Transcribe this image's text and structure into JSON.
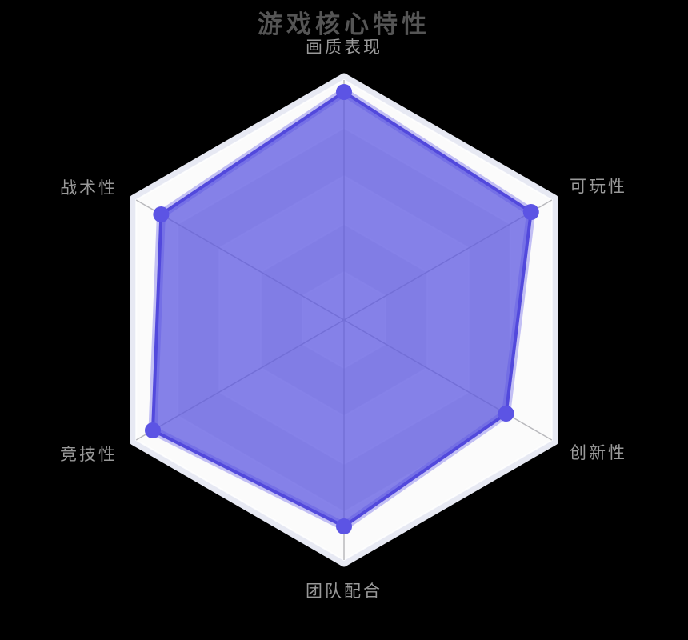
{
  "title": "游戏核心特性",
  "chart_data": {
    "type": "radar",
    "title": "游戏核心特性",
    "max": 100,
    "levels": 5,
    "grid": "hexagon-polygon",
    "legend_position": "none",
    "indicators": [
      {
        "name": "画质表现",
        "max": 100
      },
      {
        "name": "可玩性",
        "max": 100
      },
      {
        "name": "创新性",
        "max": 100
      },
      {
        "name": "团队配合",
        "max": 100
      },
      {
        "name": "竞技性",
        "max": 100
      },
      {
        "name": "战术性",
        "max": 100
      }
    ],
    "series": [
      {
        "values": [
          95,
          90,
          78,
          86,
          92,
          88
        ]
      }
    ],
    "colors": {
      "background": "#000000",
      "title_text": "#555555",
      "axis_label_text": "#999999",
      "band_light": "#fbfbfb",
      "band_dark": "#ececf0",
      "outer_edge": "#e7e9f3",
      "split_line": "rgba(255,255,255,0.8)",
      "axis_line": "#b9b9bd",
      "area_fill": "rgba(88,82,224,0.72)",
      "line": "#5249dc",
      "line_halo": "rgba(102,95,233,0.38)",
      "symbol": "#5c54e4"
    }
  }
}
